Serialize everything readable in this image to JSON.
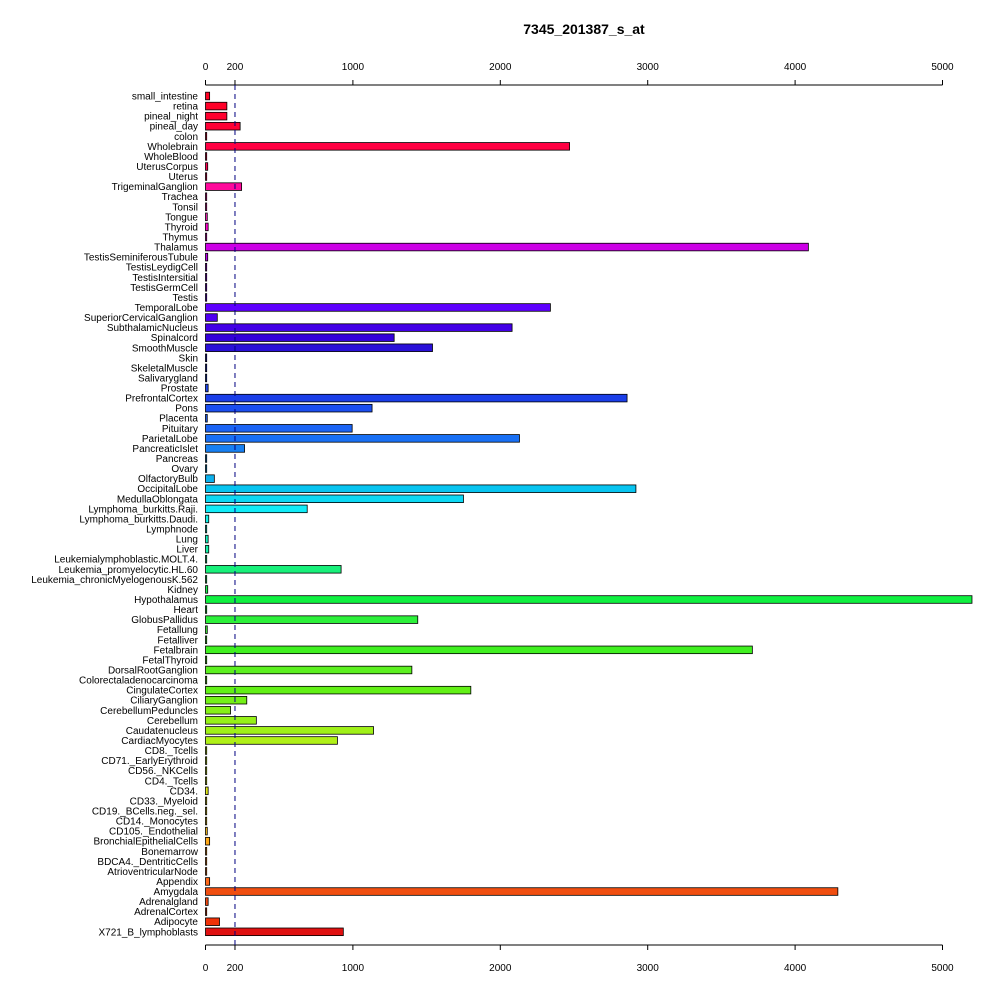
{
  "chart_data": {
    "type": "bar",
    "orientation": "horizontal",
    "title": "7345_201387_s_at",
    "xlim": [
      0,
      5000
    ],
    "x_ticks": [
      0,
      200,
      1000,
      2000,
      3000,
      4000,
      5000
    ],
    "reference_line": 200,
    "axes": [
      "top",
      "bottom"
    ],
    "categories": [
      "small_intestine",
      "retina",
      "pineal_night",
      "pineal_day",
      "colon",
      "Wholebrain",
      "WholeBlood",
      "UterusCorpus",
      "Uterus",
      "TrigeminalGanglion",
      "Trachea",
      "Tonsil",
      "Tongue",
      "Thyroid",
      "Thymus",
      "Thalamus",
      "TestisSeminiferousTubule",
      "TestisLeydigCell",
      "TestisIntersitial",
      "TestisGermCell",
      "Testis",
      "TemporalLobe",
      "SuperiorCervicalGanglion",
      "SubthalamicNucleus",
      "Spinalcord",
      "SmoothMuscle",
      "Skin",
      "SkeletalMuscle",
      "Salivarygland",
      "Prostate",
      "PrefrontalCortex",
      "Pons",
      "Placenta",
      "Pituitary",
      "ParietalLobe",
      "PancreaticIslet",
      "Pancreas",
      "Ovary",
      "OlfactoryBulb",
      "OccipitalLobe",
      "MedullaOblongata",
      "Lymphoma_burkitts.Raji.",
      "Lymphoma_burkitts.Daudi.",
      "Lymphnode",
      "Lung",
      "Liver",
      "Leukemialymphoblastic.MOLT.4.",
      "Leukemia_promyelocytic.HL.60",
      "Leukemia_chronicMyelogenousK.562",
      "Kidney",
      "Hypothalamus",
      "Heart",
      "GlobusPallidus",
      "Fetallung",
      "Fetalliver",
      "Fetalbrain",
      "FetalThyroid",
      "DorsalRootGanglion",
      "Colorectaladenocarcinoma",
      "CingulateCortex",
      "CiliaryGanglion",
      "CerebellumPeduncles",
      "Cerebellum",
      "Caudatenucleus",
      "CardiacMyocytes",
      "CD8._Tcells",
      "CD71._EarlyErythroid",
      "CD56._NKCells",
      "CD4._Tcells",
      "CD34.",
      "CD33._Myeloid",
      "CD19._BCells.neg._sel.",
      "CD14._Monocytes",
      "CD105._Endothelial",
      "BronchialEpithelialCells",
      "Bonemarrow",
      "BDCA4._DentriticCells",
      "AtrioventricularNode",
      "Appendix",
      "Amygdala",
      "Adrenalgland",
      "AdrenalCortex",
      "Adipocyte",
      "X721_B_lymphoblasts"
    ],
    "values": [
      28,
      145,
      145,
      235,
      5,
      2470,
      8,
      15,
      8,
      245,
      8,
      8,
      12,
      18,
      8,
      4090,
      15,
      8,
      8,
      8,
      8,
      2340,
      80,
      2080,
      1280,
      1540,
      8,
      5,
      8,
      18,
      2860,
      1130,
      12,
      995,
      2130,
      265,
      8,
      8,
      60,
      2920,
      1750,
      690,
      22,
      8,
      18,
      22,
      5,
      920,
      8,
      15,
      5200,
      8,
      1440,
      12,
      8,
      3710,
      8,
      1400,
      5,
      1800,
      280,
      170,
      345,
      1140,
      895,
      8,
      8,
      8,
      8,
      18,
      8,
      8,
      8,
      12,
      28,
      8,
      8,
      8,
      28,
      4290,
      18,
      8,
      95,
      935
    ],
    "colors": [
      "#ff0022",
      "#ff0028",
      "#ff002e",
      "#ff0035",
      "#ff003b",
      "#ff0042",
      "#ff0049",
      "#ff0050",
      "#ff0057",
      "#ff0a9b",
      "#ff12a6",
      "#ff19b2",
      "#ff1ebe",
      "#fa00c8",
      "#ee00d2",
      "#cc00e6",
      "#b800ea",
      "#a600ee",
      "#9400f2",
      "#8200f6",
      "#7000fa",
      "#5e00ff",
      "#5000f2",
      "#4200e6",
      "#3400da",
      "#2a10d8",
      "#2220dd",
      "#1c30e2",
      "#1640e6",
      "#1c44ea",
      "#1a3ee8",
      "#1b4ef0",
      "#1c5cf2",
      "#1b64f4",
      "#1970f4",
      "#1880f2",
      "#1490f0",
      "#10a0ee",
      "#0cb0ec",
      "#08c4f0",
      "#0cd8f4",
      "#10ecf8",
      "#12f0e6",
      "#12f0d2",
      "#12f0bc",
      "#14f0a6",
      "#16f090",
      "#18f07a",
      "#1af064",
      "#1cf050",
      "#10f040",
      "#1cf040",
      "#2cf03a",
      "#3cf034",
      "#48f030",
      "#40f020",
      "#50f020",
      "#5cf020",
      "#68f020",
      "#62f016",
      "#74f018",
      "#86f018",
      "#96f018",
      "#a0f018",
      "#b0f018",
      "#c0f018",
      "#c8f018",
      "#d0f018",
      "#d8f018",
      "#e0e818",
      "#e8e018",
      "#f0d818",
      "#f8cc18",
      "#ffbf18",
      "#ffa818",
      "#ff9818",
      "#ff8818",
      "#ff7818",
      "#ff6818",
      "#f04e10",
      "#f04810",
      "#f04010",
      "#f03208",
      "#e01010"
    ]
  }
}
